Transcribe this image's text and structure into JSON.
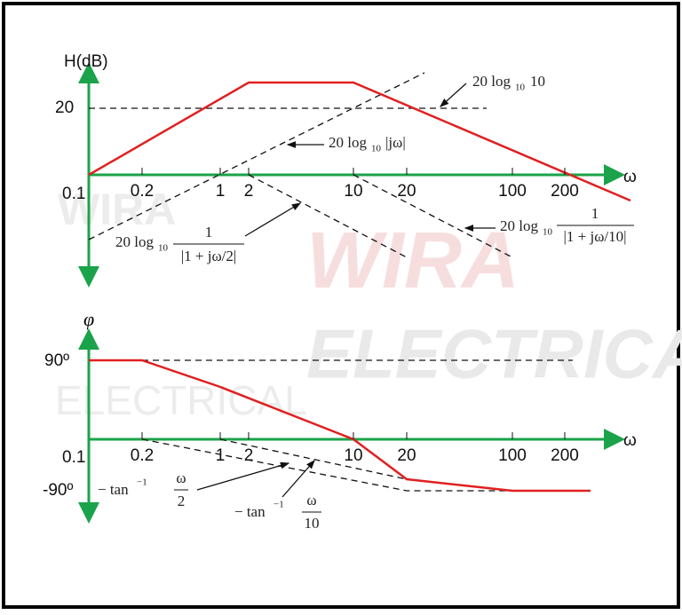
{
  "magnitude_plot": {
    "y_axis_label": "H(dB)",
    "y_tick": "20",
    "x_axis_label": "ω",
    "origin_label": "0.1",
    "x_ticks": [
      "0.2",
      "1",
      "2",
      "10",
      "20",
      "100",
      "200"
    ],
    "annotations": [
      {
        "prefix": "20 log",
        "sub": "10",
        "rest": "10"
      },
      {
        "prefix": "20 log",
        "sub": "10",
        "rest": "|jω|"
      },
      {
        "prefix": "20 log",
        "sub": "10",
        "numerator": "1",
        "denominator": "|1 + jω/10|"
      },
      {
        "prefix": "20 log",
        "sub": "10",
        "numerator": "1",
        "denominator": "|1 + jω/2|"
      }
    ]
  },
  "phase_plot": {
    "y_axis_label": "φ",
    "y_tick_top": "90º",
    "y_tick_bottom": "-90º",
    "x_axis_label": "ω",
    "origin_label": "0.1",
    "x_ticks": [
      "0.2",
      "1",
      "2",
      "10",
      "20",
      "100",
      "200"
    ],
    "annotations": [
      {
        "prefix": "− tan",
        "sup": "−1",
        "numerator": "ω",
        "denominator": "2"
      },
      {
        "prefix": "− tan",
        "sup": "−1",
        "numerator": "ω",
        "denominator": "10"
      }
    ]
  },
  "watermark": {
    "brand": "WIRA",
    "subtitle": "ELECTRICAL"
  }
}
